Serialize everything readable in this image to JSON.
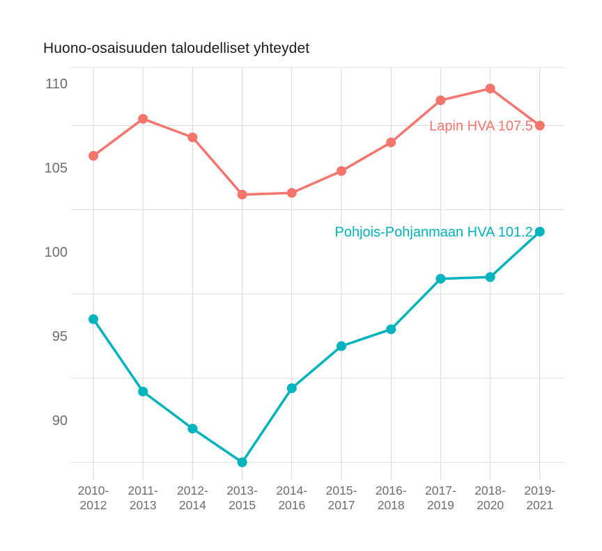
{
  "title": "Huono-osaisuuden taloudelliset yhteydet",
  "colors": {
    "background": "#ffffff",
    "title_text": "#1c1c1c",
    "axis_text": "#6e6e6e",
    "h_grid": "#e0e0e0",
    "v_grid": "#d9d9d9",
    "lapin_series": "#f4756c",
    "pohjois_series": "#00b3bc"
  },
  "chart_data": {
    "type": "line",
    "title": "Huono-osaisuuden taloudelliset yhteydet",
    "categories": [
      "2010-2012",
      "2011-2013",
      "2012-2014",
      "2013-2015",
      "2014-2016",
      "2015-2017",
      "2016-2018",
      "2017-2019",
      "2018-2020",
      "2019-2021"
    ],
    "series": [
      {
        "name": "Lapin HVA",
        "end_label": "Lapin HVA 107.5",
        "color": "#f4756c",
        "values": [
          105.7,
          107.9,
          106.8,
          103.4,
          103.5,
          104.8,
          106.5,
          109.0,
          109.7,
          107.5
        ]
      },
      {
        "name": "Pohjois-Pohjanmaan HVA",
        "end_label": "Pohjois-Pohjanmaan HVA 101.2",
        "color": "#00b3bc",
        "values": [
          96.0,
          91.7,
          89.5,
          87.5,
          91.9,
          94.4,
          95.4,
          98.4,
          98.5,
          101.2
        ]
      }
    ],
    "yticks": [
      110,
      105,
      100,
      95,
      90
    ],
    "gridlines_y": [
      107.5,
      102.5,
      97.5,
      92.5,
      87.5
    ],
    "ylim": [
      87.5,
      111
    ],
    "xlabel": "",
    "ylabel": "",
    "grid": true,
    "legend_position": "end-of-line-labels"
  }
}
